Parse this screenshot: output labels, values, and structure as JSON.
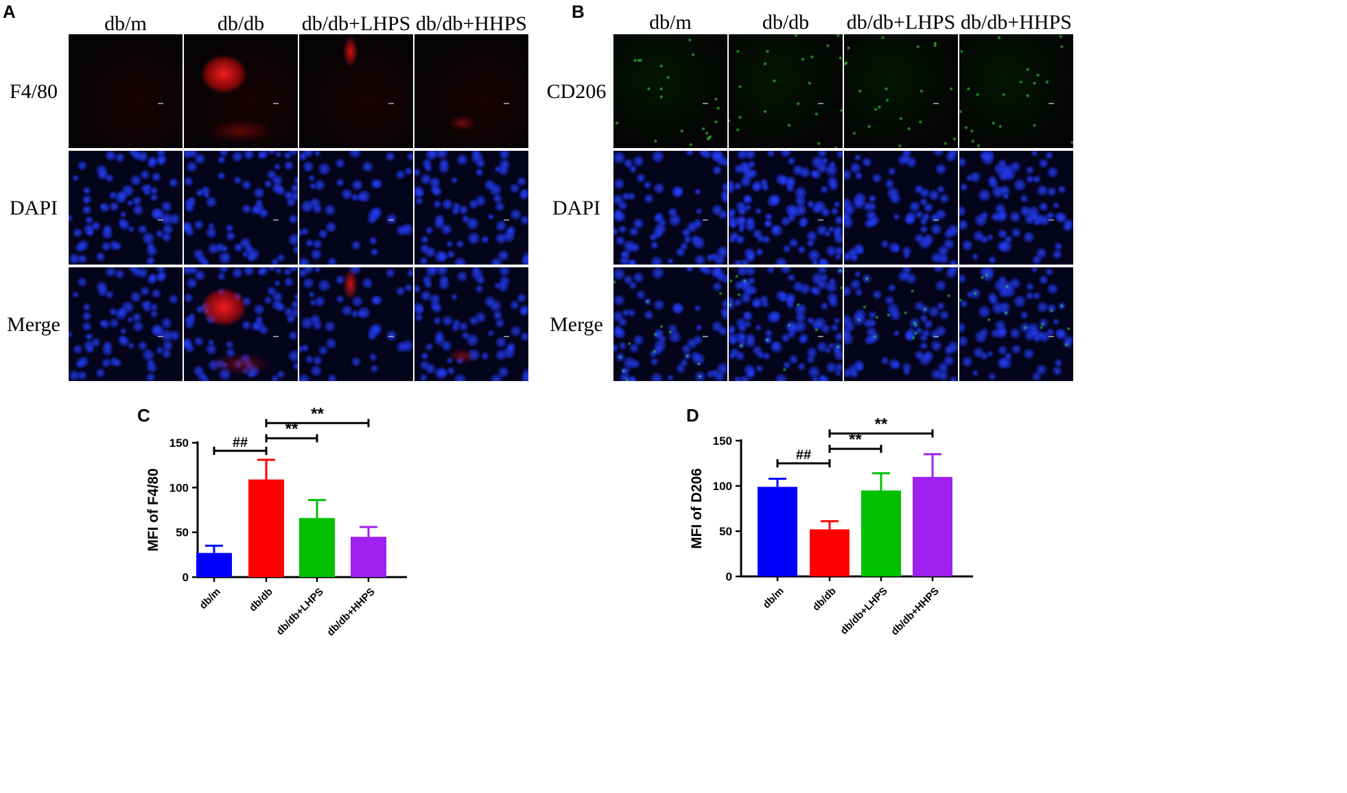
{
  "panel_A": {
    "letter": "A",
    "columns": [
      "db/m",
      "db/db",
      "db/db+LHPS",
      "db/db+HHPS"
    ],
    "rows": [
      "F4/80",
      "DAPI",
      "Merge"
    ]
  },
  "panel_B": {
    "letter": "B",
    "columns": [
      "db/m",
      "db/db",
      "db/db+LHPS",
      "db/db+HHPS"
    ],
    "rows": [
      "CD206",
      "DAPI",
      "Merge"
    ]
  },
  "colors": {
    "db/m": "#0000ff",
    "db/db": "#ff0000",
    "db/db+LHPS": "#00c000",
    "db/db+HHPS": "#a020f0",
    "stain_red": "#ff2020",
    "stain_blue": "#2040ff",
    "stain_green": "#30c030"
  },
  "chart_data": [
    {
      "letter": "C",
      "type": "bar",
      "categories": [
        "db/m",
        "db/db",
        "db/db+LHPS",
        "db/db+HHPS"
      ],
      "values": [
        27,
        109,
        66,
        45
      ],
      "errors": [
        8,
        22,
        20,
        11
      ],
      "ylabel": "MFI of F4/80",
      "ylim": [
        0,
        150
      ],
      "yticks": [
        "0",
        "50",
        "100",
        "150"
      ],
      "significance": [
        {
          "from": 0,
          "to": 1,
          "label": "##",
          "y": 141
        },
        {
          "from": 1,
          "to": 2,
          "label": "**",
          "y": 155
        },
        {
          "from": 1,
          "to": 3,
          "label": "**",
          "y": 172
        }
      ]
    },
    {
      "letter": "D",
      "type": "bar",
      "categories": [
        "db/m",
        "db/db",
        "db/db+LHPS",
        "db/db+HHPS"
      ],
      "values": [
        99,
        52,
        95,
        110
      ],
      "errors": [
        9,
        9,
        19,
        25
      ],
      "ylabel": "MFI of D206",
      "ylim": [
        0,
        150
      ],
      "yticks": [
        "0",
        "50",
        "100",
        "150"
      ],
      "significance": [
        {
          "from": 0,
          "to": 1,
          "label": "##",
          "y": 125
        },
        {
          "from": 1,
          "to": 2,
          "label": "**",
          "y": 141
        },
        {
          "from": 1,
          "to": 3,
          "label": "**",
          "y": 158
        }
      ]
    }
  ]
}
